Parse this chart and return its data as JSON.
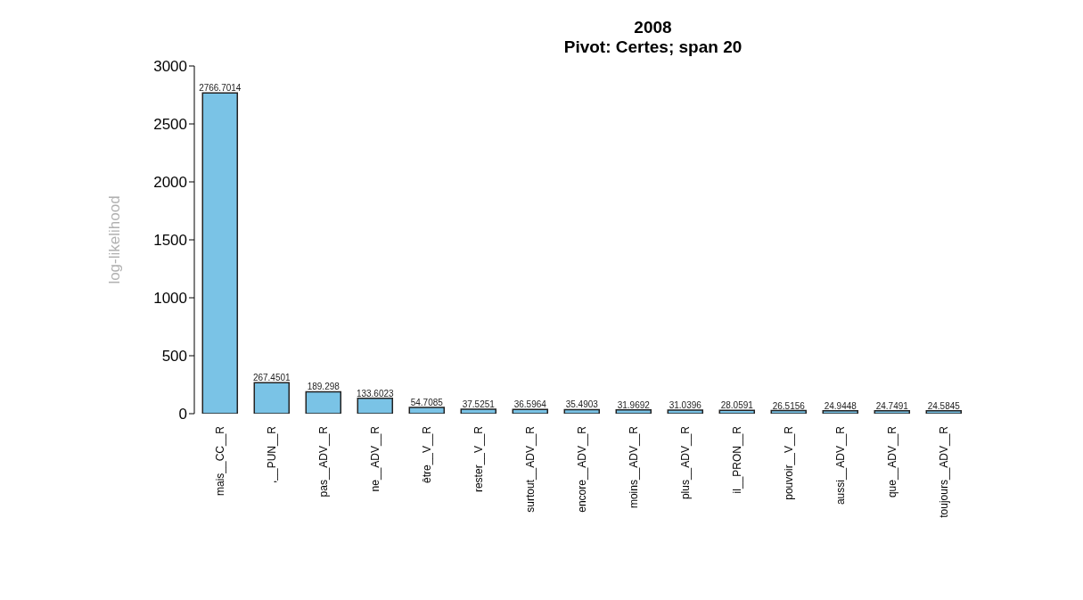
{
  "chart_data": {
    "type": "bar",
    "title": "2008",
    "subtitle": "Pivot: Certes; span 20",
    "ylabel": "log-likelihood",
    "categories": [
      "mais__CC__R",
      ",__PUN__R",
      "pas__ADV__R",
      "ne__ADV__R",
      "être__V__R",
      "rester__V__R",
      "surtout__ADV__R",
      "encore__ADV__R",
      "moins__ADV__R",
      "plus__ADV__R",
      "il__PRON__R",
      "pouvoir__V__R",
      "aussi__ADV__R",
      "que__ADV__R",
      "toujours__ADV__R"
    ],
    "values": [
      2766.7014,
      267.4501,
      189.298,
      133.6023,
      54.7085,
      37.5251,
      36.5964,
      35.4903,
      31.9692,
      31.0396,
      28.0591,
      26.5156,
      24.9448,
      24.7491,
      24.5845
    ],
    "color": "#7ac3e6",
    "ylim": [
      0,
      3000
    ],
    "yticks": [
      0,
      500,
      1000,
      1500,
      2000,
      2500,
      3000
    ],
    "grid": false,
    "data_labels": true,
    "legend": false
  }
}
